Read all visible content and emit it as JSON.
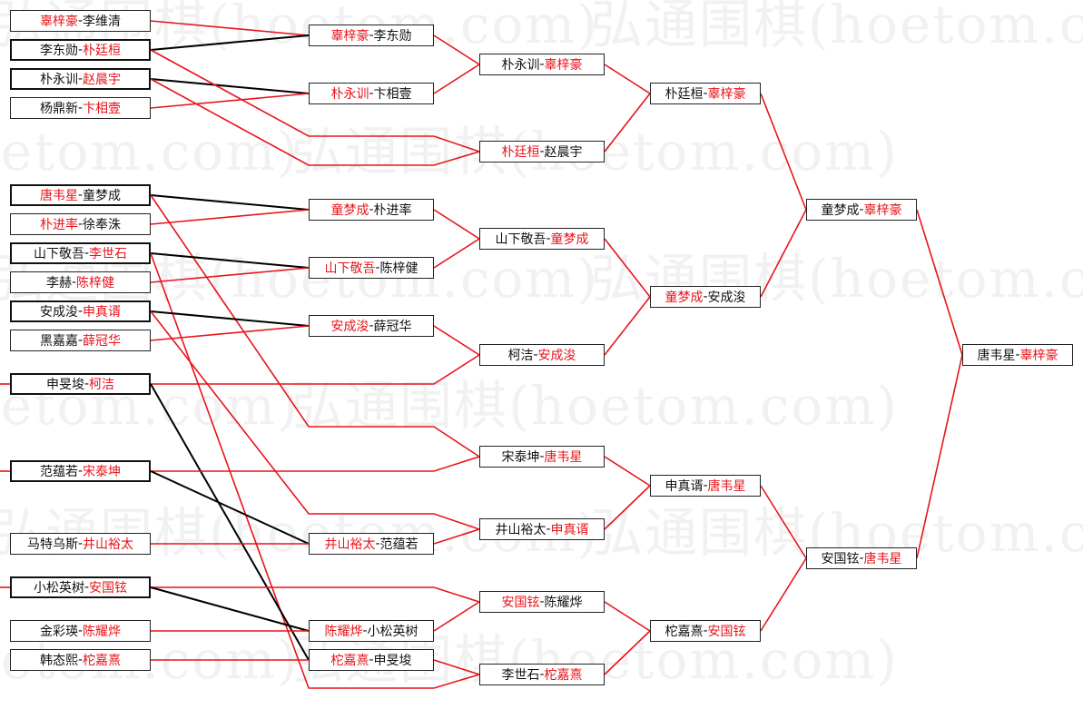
{
  "watermark": "弘通围棋(hoetom.com)",
  "colors": {
    "winner": "#e8141b",
    "line_win": "#e8141b",
    "line_loss": "#000000"
  },
  "separator": "-",
  "round1": [
    {
      "p1": "辜梓豪",
      "p2": "李维清",
      "red": 1
    },
    {
      "p1": "李东勋",
      "p2": "朴廷桓",
      "red": 2
    },
    {
      "p1": "朴永训",
      "p2": "赵晨宇",
      "red": 2
    },
    {
      "p1": "杨鼎新",
      "p2": "卞相壹",
      "red": 2
    },
    {
      "p1": "唐韦星",
      "p2": "童梦成",
      "red": 1
    },
    {
      "p1": "朴进率",
      "p2": "徐奉洙",
      "red": 1
    },
    {
      "p1": "山下敬吾",
      "p2": "李世石",
      "red": 2
    },
    {
      "p1": "李赫",
      "p2": "陈梓健",
      "red": 2
    },
    {
      "p1": "安成浚",
      "p2": "申真谞",
      "red": 2
    },
    {
      "p1": "黑嘉嘉",
      "p2": "薛冠华",
      "red": 2
    },
    {
      "p1": "申旻埈",
      "p2": "柯洁",
      "red": 2
    },
    {
      "p1": "范蕴若",
      "p2": "宋泰坤",
      "red": 2
    },
    {
      "p1": "马特乌斯",
      "p2": "井山裕太",
      "red": 2
    },
    {
      "p1": "小松英树",
      "p2": "安国铉",
      "red": 2
    },
    {
      "p1": "金彩瑛",
      "p2": "陈耀烨",
      "red": 2
    },
    {
      "p1": "韩态熙",
      "p2": "柁嘉熹",
      "red": 2
    }
  ],
  "round2": [
    {
      "p1": "辜梓豪",
      "p2": "李东勋",
      "red": 1
    },
    {
      "p1": "朴永训",
      "p2": "卞相壹",
      "red": 1
    },
    {
      "p1": "童梦成",
      "p2": "朴进率",
      "red": 1
    },
    {
      "p1": "山下敬吾",
      "p2": "陈梓健",
      "red": 1
    },
    {
      "p1": "安成浚",
      "p2": "薛冠华",
      "red": 1
    },
    {
      "p1": "井山裕太",
      "p2": "范蕴若",
      "red": 1
    },
    {
      "p1": "陈耀烨",
      "p2": "小松英树",
      "red": 1
    },
    {
      "p1": "柁嘉熹",
      "p2": "申旻埈",
      "red": 1
    }
  ],
  "round3": [
    {
      "p1": "朴永训",
      "p2": "辜梓豪",
      "red": 2
    },
    {
      "p1": "朴廷桓",
      "p2": "赵晨宇",
      "red": 1
    },
    {
      "p1": "山下敬吾",
      "p2": "童梦成",
      "red": 2
    },
    {
      "p1": "柯洁",
      "p2": "安成浚",
      "red": 2
    },
    {
      "p1": "宋泰坤",
      "p2": "唐韦星",
      "red": 2
    },
    {
      "p1": "井山裕太",
      "p2": "申真谞",
      "red": 2
    },
    {
      "p1": "安国铉",
      "p2": "陈耀烨",
      "red": 1
    },
    {
      "p1": "李世石",
      "p2": "柁嘉熹",
      "red": 2
    }
  ],
  "round4": [
    {
      "p1": "朴廷桓",
      "p2": "辜梓豪",
      "red": 2
    },
    {
      "p1": "童梦成",
      "p2": "安成浚",
      "red": 1
    },
    {
      "p1": "申真谞",
      "p2": "唐韦星",
      "red": 2
    },
    {
      "p1": "柁嘉熹",
      "p2": "安国铉",
      "red": 2
    }
  ],
  "round5": [
    {
      "p1": "童梦成",
      "p2": "辜梓豪",
      "red": 2
    },
    {
      "p1": "安国铉",
      "p2": "唐韦星",
      "red": 2
    }
  ],
  "final": [
    {
      "p1": "唐韦星",
      "p2": "辜梓豪",
      "red": 2
    }
  ]
}
